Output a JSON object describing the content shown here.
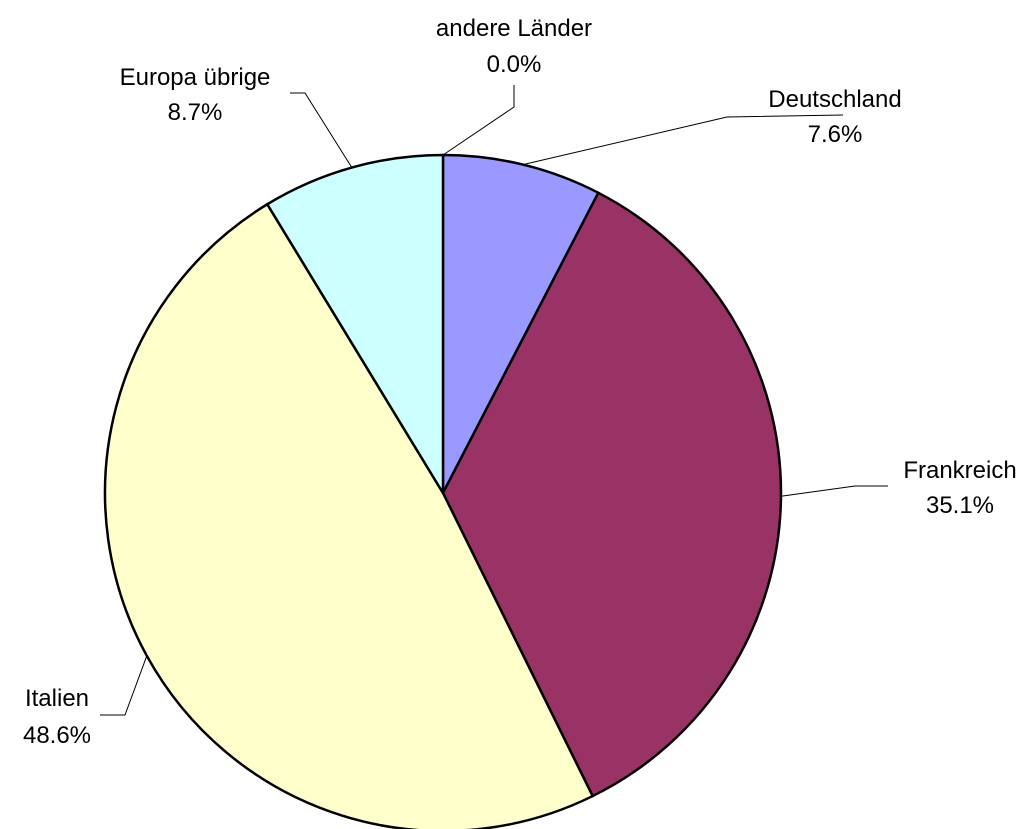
{
  "chart_data": {
    "type": "pie",
    "title": "",
    "start_angle_deg": 0,
    "direction": "clockwise",
    "slices": [
      {
        "label": "Deutschland",
        "value": 7.6,
        "pct_label": "7.6%",
        "color": "#9999FF"
      },
      {
        "label": "Frankreich",
        "value": 35.1,
        "pct_label": "35.1%",
        "color": "#993366"
      },
      {
        "label": "Italien",
        "value": 48.6,
        "pct_label": "48.6%",
        "color": "#FFFFCC"
      },
      {
        "label": "Europa übrige",
        "value": 8.7,
        "pct_label": "8.7%",
        "color": "#CCFFFF"
      },
      {
        "label": "andere Länder",
        "value": 0.0,
        "pct_label": "0.0%",
        "color": "#FF8080"
      }
    ]
  }
}
